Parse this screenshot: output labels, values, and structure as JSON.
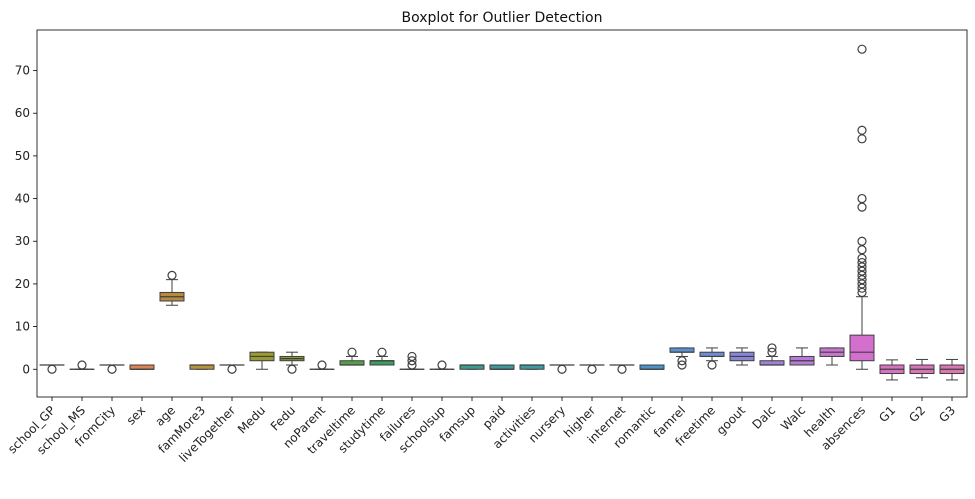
{
  "chart_data": {
    "type": "boxplot",
    "title": "Boxplot for Outlier Detection",
    "xlabel": "",
    "ylabel": "",
    "ylim": [
      -6.5,
      79.5
    ],
    "yticks": [
      0,
      10,
      20,
      30,
      40,
      50,
      60,
      70
    ],
    "grid": false,
    "legend": "none",
    "categories": [
      "school_GP",
      "school_MS",
      "fromCity",
      "sex",
      "age",
      "famMore3",
      "liveTogether",
      "Medu",
      "Fedu",
      "noParent",
      "traveltime",
      "studytime",
      "failures",
      "schoolsup",
      "famsup",
      "paid",
      "activities",
      "nursery",
      "higher",
      "internet",
      "romantic",
      "famrel",
      "freetime",
      "goout",
      "Dalc",
      "Walc",
      "health",
      "absences",
      "G1",
      "G2",
      "G3"
    ],
    "boxes": [
      {
        "name": "school_GP",
        "color": "#d98a8a",
        "whislo": 1,
        "q1": 1,
        "med": 1,
        "q3": 1,
        "whishi": 1,
        "fliers": [
          0
        ]
      },
      {
        "name": "school_MS",
        "color": "#cf9088",
        "whislo": 0,
        "q1": 0,
        "med": 0,
        "q3": 0,
        "whishi": 0,
        "fliers": [
          1
        ]
      },
      {
        "name": "fromCity",
        "color": "#d49274",
        "whislo": 1,
        "q1": 1,
        "med": 1,
        "q3": 1,
        "whishi": 1,
        "fliers": [
          0
        ]
      },
      {
        "name": "sex",
        "color": "#dd8452",
        "whislo": 0,
        "q1": 0,
        "med": 0,
        "q3": 1,
        "whishi": 1,
        "fliers": []
      },
      {
        "name": "age",
        "color": "#b88a3f",
        "whislo": 15,
        "q1": 16,
        "med": 17,
        "q3": 18,
        "whishi": 21,
        "fliers": [
          22
        ]
      },
      {
        "name": "famMore3",
        "color": "#b8923a",
        "whislo": 0,
        "q1": 0,
        "med": 1,
        "q3": 1,
        "whishi": 1,
        "fliers": []
      },
      {
        "name": "liveTogether",
        "color": "#a79a40",
        "whislo": 1,
        "q1": 1,
        "med": 1,
        "q3": 1,
        "whishi": 1,
        "fliers": [
          0
        ]
      },
      {
        "name": "Medu",
        "color": "#9a9a35",
        "whislo": 0,
        "q1": 2,
        "med": 3,
        "q3": 4,
        "whishi": 4,
        "fliers": []
      },
      {
        "name": "Fedu",
        "color": "#8e9c38",
        "whislo": 1,
        "q1": 2,
        "med": 2.5,
        "q3": 3,
        "whishi": 4,
        "fliers": [
          0
        ]
      },
      {
        "name": "noParent",
        "color": "#6f9e3e",
        "whislo": 0,
        "q1": 0,
        "med": 0,
        "q3": 0,
        "whishi": 0,
        "fliers": [
          1
        ]
      },
      {
        "name": "traveltime",
        "color": "#55a04a",
        "whislo": 1,
        "q1": 1,
        "med": 1,
        "q3": 2,
        "whishi": 3,
        "fliers": [
          4
        ]
      },
      {
        "name": "studytime",
        "color": "#3e9e5c",
        "whislo": 1,
        "q1": 1,
        "med": 2,
        "q3": 2,
        "whishi": 3,
        "fliers": [
          4
        ]
      },
      {
        "name": "failures",
        "color": "#3c9a72",
        "whislo": 0,
        "q1": 0,
        "med": 0,
        "q3": 0,
        "whishi": 0,
        "fliers": [
          1,
          2,
          3
        ]
      },
      {
        "name": "schoolsup",
        "color": "#3c9a82",
        "whislo": 0,
        "q1": 0,
        "med": 0,
        "q3": 0,
        "whishi": 0,
        "fliers": [
          1
        ]
      },
      {
        "name": "famsup",
        "color": "#3b9b8f",
        "whislo": 0,
        "q1": 0,
        "med": 1,
        "q3": 1,
        "whishi": 1,
        "fliers": []
      },
      {
        "name": "paid",
        "color": "#3d9a9a",
        "whislo": 0,
        "q1": 0,
        "med": 0,
        "q3": 1,
        "whishi": 1,
        "fliers": []
      },
      {
        "name": "activities",
        "color": "#3e9aa5",
        "whislo": 0,
        "q1": 0,
        "med": 1,
        "q3": 1,
        "whishi": 1,
        "fliers": []
      },
      {
        "name": "nursery",
        "color": "#4099b0",
        "whislo": 1,
        "q1": 1,
        "med": 1,
        "q3": 1,
        "whishi": 1,
        "fliers": [
          0
        ]
      },
      {
        "name": "higher",
        "color": "#4298b8",
        "whislo": 1,
        "q1": 1,
        "med": 1,
        "q3": 1,
        "whishi": 1,
        "fliers": [
          0
        ]
      },
      {
        "name": "internet",
        "color": "#4597c0",
        "whislo": 1,
        "q1": 1,
        "med": 1,
        "q3": 1,
        "whishi": 1,
        "fliers": [
          0
        ]
      },
      {
        "name": "romantic",
        "color": "#4a95c8",
        "whislo": 0,
        "q1": 0,
        "med": 0,
        "q3": 1,
        "whishi": 1,
        "fliers": []
      },
      {
        "name": "famrel",
        "color": "#5a8fd0",
        "whislo": 3,
        "q1": 4,
        "med": 4,
        "q3": 5,
        "whishi": 5,
        "fliers": [
          1,
          2
        ]
      },
      {
        "name": "freetime",
        "color": "#6f8cd4",
        "whislo": 2,
        "q1": 3,
        "med": 3,
        "q3": 4,
        "whishi": 5,
        "fliers": [
          1
        ]
      },
      {
        "name": "goout",
        "color": "#8a86d6",
        "whislo": 1,
        "q1": 2,
        "med": 3,
        "q3": 4,
        "whishi": 5,
        "fliers": []
      },
      {
        "name": "Dalc",
        "color": "#a47fd6",
        "whislo": 1,
        "q1": 1,
        "med": 1,
        "q3": 2,
        "whishi": 3,
        "fliers": [
          4,
          5
        ]
      },
      {
        "name": "Walc",
        "color": "#b87ad6",
        "whislo": 1,
        "q1": 1,
        "med": 2,
        "q3": 3,
        "whishi": 5,
        "fliers": []
      },
      {
        "name": "health",
        "color": "#c876d0",
        "whislo": 1,
        "q1": 3,
        "med": 4,
        "q3": 5,
        "whishi": 5,
        "fliers": []
      },
      {
        "name": "absences",
        "color": "#d36fcc",
        "whislo": 0,
        "q1": 2,
        "med": 4,
        "q3": 8,
        "whishi": 17,
        "fliers": [
          18,
          19,
          20,
          21,
          22,
          23,
          24,
          25,
          26,
          28,
          30,
          38,
          40,
          54,
          56,
          75
        ]
      },
      {
        "name": "G1",
        "color": "#d772c0",
        "whislo": -2.5,
        "q1": -1,
        "med": 0,
        "q3": 1,
        "whishi": 2.2,
        "fliers": []
      },
      {
        "name": "G2",
        "color": "#da73b8",
        "whislo": -2,
        "q1": -1,
        "med": 0,
        "q3": 1,
        "whishi": 2.3,
        "fliers": []
      },
      {
        "name": "G3",
        "color": "#dc76b0",
        "whislo": -2.5,
        "q1": -1,
        "med": 0,
        "q3": 1,
        "whishi": 2.3,
        "fliers": []
      }
    ]
  }
}
